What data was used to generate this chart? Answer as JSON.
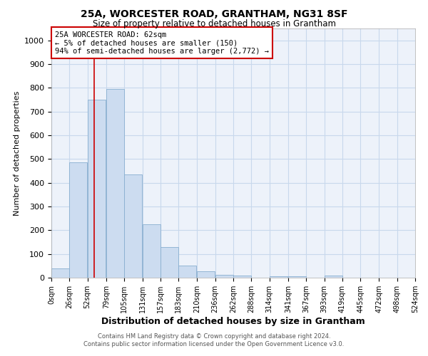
{
  "title": "25A, WORCESTER ROAD, GRANTHAM, NG31 8SF",
  "subtitle": "Size of property relative to detached houses in Grantham",
  "xlabel": "Distribution of detached houses by size in Grantham",
  "ylabel": "Number of detached properties",
  "bar_color": "#ccdcf0",
  "bar_edge_color": "#88aed0",
  "grid_color": "#c8d8ec",
  "background_color": "#edf2fa",
  "bin_labels": [
    "0sqm",
    "26sqm",
    "52sqm",
    "79sqm",
    "105sqm",
    "131sqm",
    "157sqm",
    "183sqm",
    "210sqm",
    "236sqm",
    "262sqm",
    "288sqm",
    "314sqm",
    "341sqm",
    "367sqm",
    "393sqm",
    "419sqm",
    "445sqm",
    "472sqm",
    "498sqm",
    "524sqm"
  ],
  "bar_heights": [
    40,
    485,
    750,
    795,
    435,
    225,
    130,
    52,
    28,
    12,
    8,
    0,
    6,
    5,
    0,
    8,
    0,
    0,
    0,
    0
  ],
  "red_line_x": 62,
  "bin_starts": [
    0,
    26,
    52,
    79,
    105,
    131,
    157,
    183,
    210,
    236,
    262,
    288,
    314,
    341,
    367,
    393,
    419,
    445,
    472,
    498
  ],
  "bin_width": 26,
  "annotation_text": "25A WORCESTER ROAD: 62sqm\n← 5% of detached houses are smaller (150)\n94% of semi-detached houses are larger (2,772) →",
  "annotation_box_facecolor": "#ffffff",
  "annotation_box_edgecolor": "#cc0000",
  "ylim": [
    0,
    1000
  ],
  "yticks": [
    0,
    100,
    200,
    300,
    400,
    500,
    600,
    700,
    800,
    900,
    1000
  ],
  "footer_line1": "Contains HM Land Registry data © Crown copyright and database right 2024.",
  "footer_line2": "Contains public sector information licensed under the Open Government Licence v3.0."
}
